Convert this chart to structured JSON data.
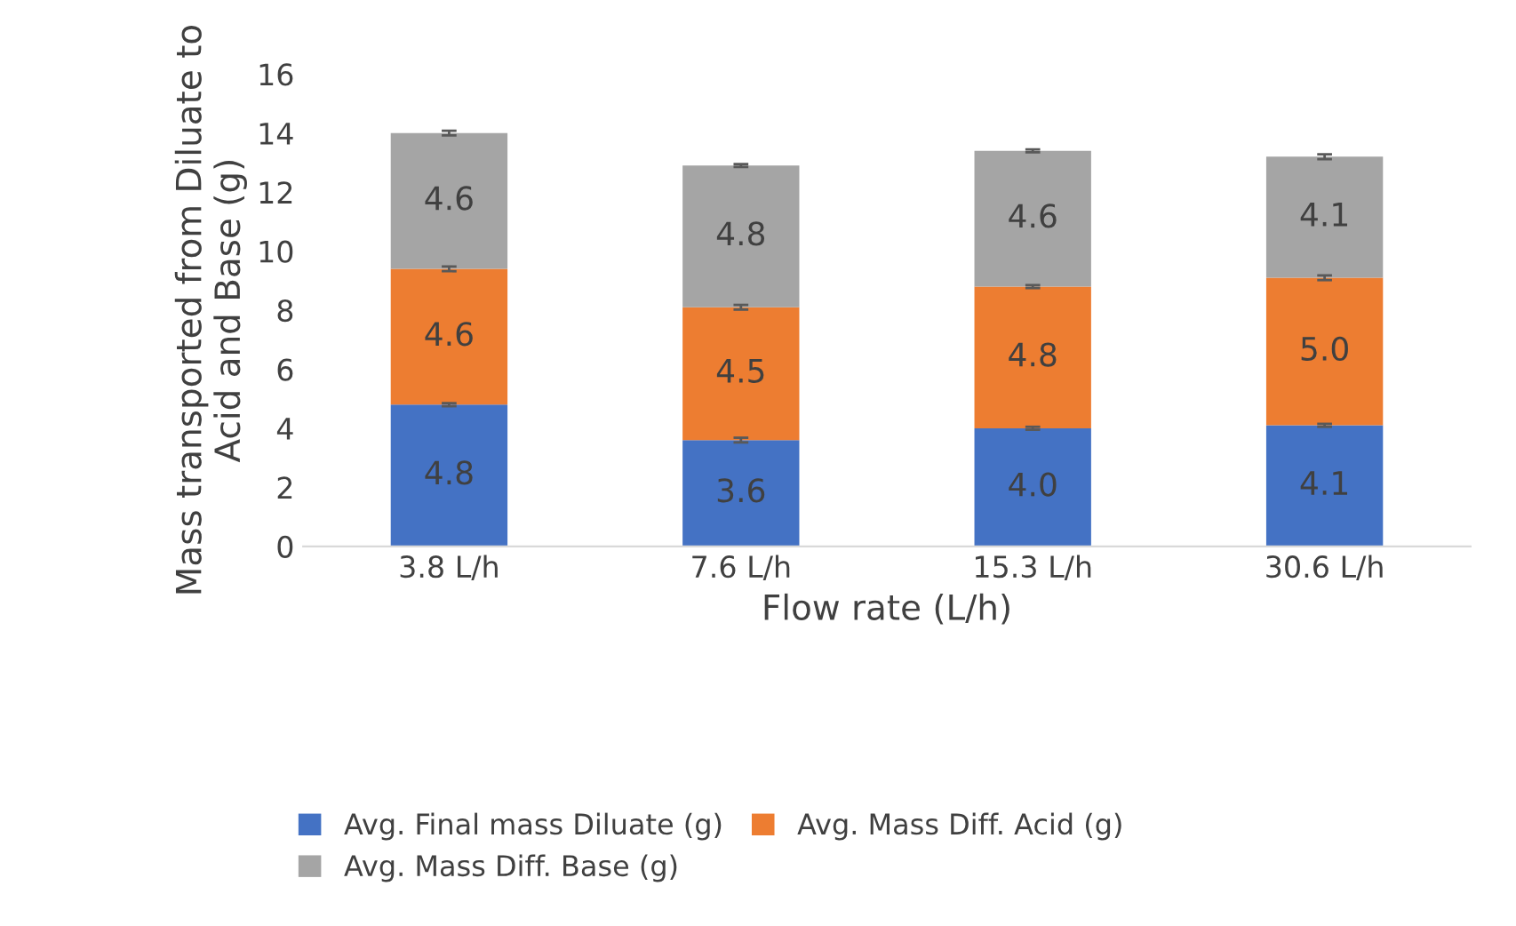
{
  "chart_data": {
    "type": "bar",
    "stacked": true,
    "xlabel": "Flow rate (L/h)",
    "ylabel": "Mass transported from Diluate to Acid and Base (g)",
    "categories": [
      "3.8 L/h",
      "7.6 L/h",
      "15.3 L/h",
      "30.6 L/h"
    ],
    "series": [
      {
        "name": "Avg. Final mass Diluate (g)",
        "color": "#4472c4",
        "values": [
          4.8,
          3.6,
          4.0,
          4.1
        ],
        "value_labels": [
          "4.8",
          "3.6",
          "4.0",
          "4.1"
        ],
        "errors": [
          0.05,
          0.08,
          0.05,
          0.05
        ]
      },
      {
        "name": "Avg. Mass Diff. Acid (g)",
        "color": "#ed7d31",
        "values": [
          4.6,
          4.5,
          4.8,
          5.0
        ],
        "value_labels": [
          "4.6",
          "4.5",
          "4.8",
          "5.0"
        ],
        "errors": [
          0.08,
          0.08,
          0.05,
          0.08
        ]
      },
      {
        "name": "Avg. Mass Diff. Base (g)",
        "color": "#a5a5a5",
        "values": [
          4.6,
          4.8,
          4.6,
          4.1
        ],
        "value_labels": [
          "4.6",
          "4.8",
          "4.6",
          "4.1"
        ],
        "errors": [
          0.08,
          0.05,
          0.05,
          0.08
        ]
      }
    ],
    "ylim": [
      0,
      16
    ],
    "yticks": [
      0,
      2,
      4,
      6,
      8,
      10,
      12,
      14,
      16
    ],
    "grid": false,
    "legend": "bottom"
  }
}
